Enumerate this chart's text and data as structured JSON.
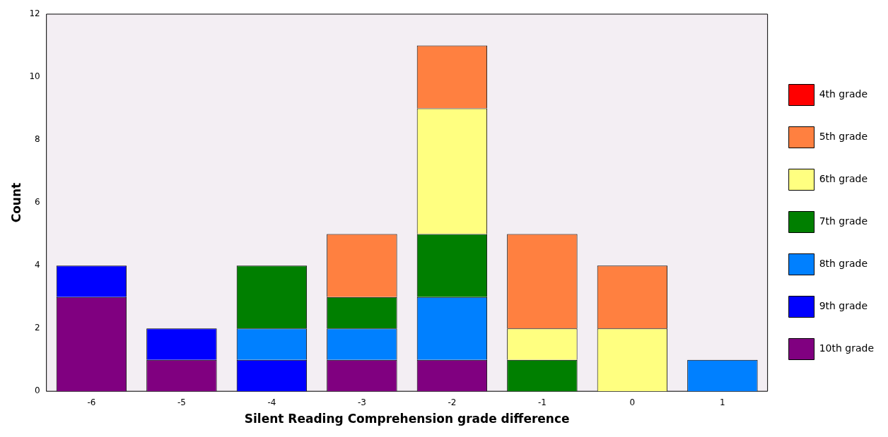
{
  "chart_data": {
    "type": "bar",
    "stacked": true,
    "xlabel": "Silent Reading Comprehension grade difference",
    "ylabel": "Count",
    "categories": [
      "-6",
      "-5",
      "-4",
      "-3",
      "-2",
      "-1",
      "0",
      "1"
    ],
    "series": [
      {
        "name": "10th grade",
        "color": "#800080",
        "values": [
          3,
          1,
          0,
          1,
          1,
          0,
          0,
          0
        ]
      },
      {
        "name": "9th grade",
        "color": "#0000ff",
        "values": [
          1,
          1,
          1,
          0,
          0,
          0,
          0,
          0
        ]
      },
      {
        "name": "8th grade",
        "color": "#0080ff",
        "values": [
          0,
          0,
          1,
          1,
          2,
          0,
          0,
          1
        ]
      },
      {
        "name": "7th grade",
        "color": "#007f00",
        "values": [
          0,
          0,
          2,
          1,
          2,
          1,
          0,
          0
        ]
      },
      {
        "name": "6th grade",
        "color": "#ffff80",
        "values": [
          0,
          0,
          0,
          0,
          4,
          1,
          2,
          0
        ]
      },
      {
        "name": "5th grade",
        "color": "#ff8040",
        "values": [
          0,
          0,
          0,
          2,
          2,
          3,
          2,
          0
        ]
      },
      {
        "name": "4th grade",
        "color": "#ff0000",
        "values": [
          0,
          0,
          0,
          0,
          0,
          0,
          0,
          0
        ]
      }
    ],
    "ylim": [
      0,
      12
    ],
    "yticks": [
      0,
      2,
      4,
      6,
      8,
      10,
      12
    ],
    "grid": false,
    "legend": "right"
  }
}
